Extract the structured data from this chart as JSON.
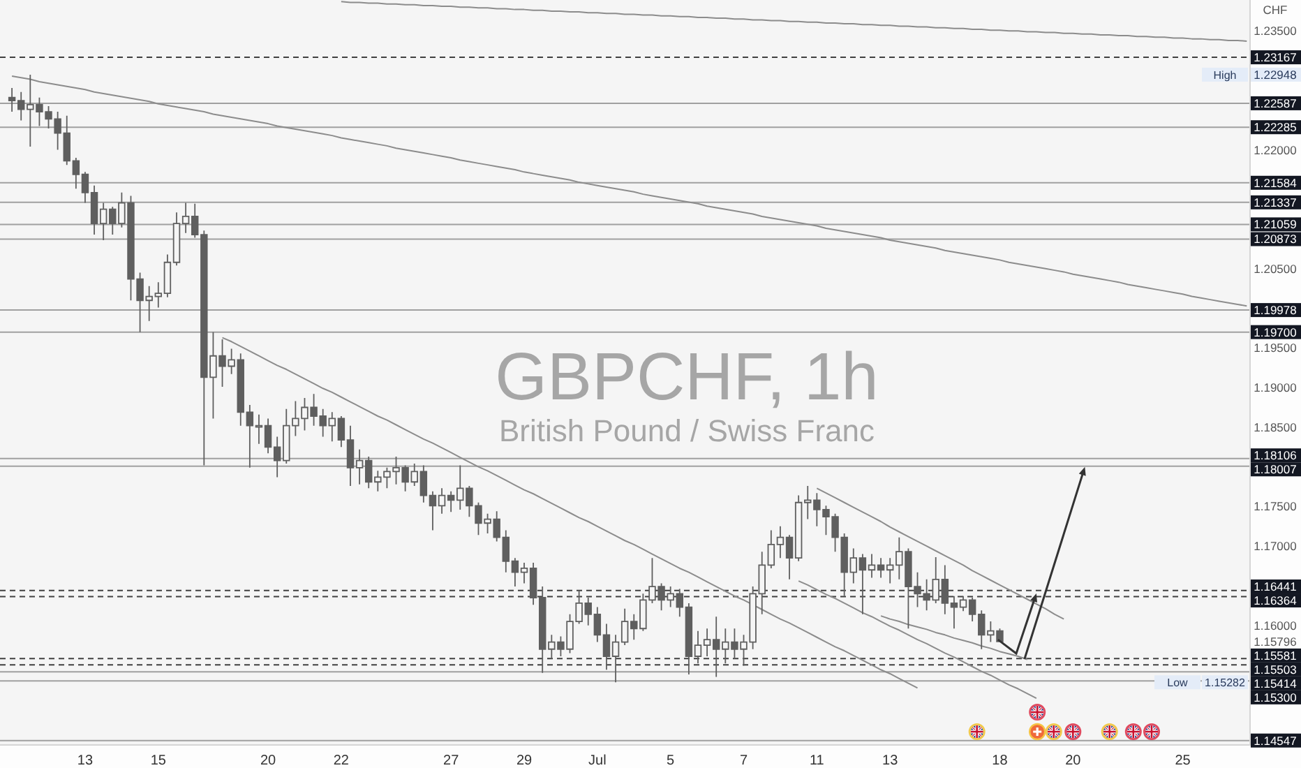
{
  "chart_data": {
    "type": "candlestick",
    "title": "GBPCHF, 1h",
    "subtitle": "British Pound / Swiss Franc",
    "ylabel": "CHF",
    "color": "#5f5f5f",
    "categories": [
      null,
      null,
      null,
      null,
      null,
      null,
      null,
      null,
      "13",
      null,
      null,
      null,
      null,
      null,
      null,
      null,
      "15",
      null,
      null,
      null,
      null,
      null,
      null,
      null,
      null,
      null,
      null,
      null,
      "20",
      null,
      null,
      null,
      null,
      null,
      null,
      null,
      "22",
      null,
      null,
      null,
      null,
      null,
      null,
      null,
      null,
      null,
      null,
      null,
      "27",
      null,
      null,
      null,
      null,
      null,
      null,
      null,
      "29",
      null,
      null,
      null,
      null,
      null,
      null,
      null,
      "Jul",
      null,
      null,
      null,
      null,
      null,
      null,
      null,
      "5",
      null,
      null,
      null,
      null,
      null,
      null,
      null,
      "7",
      null,
      null,
      null,
      null,
      null,
      null,
      null,
      "11",
      null,
      null,
      null,
      null,
      null,
      null,
      null,
      "13",
      null,
      null,
      null,
      null,
      null,
      null,
      null,
      null,
      null,
      null,
      null,
      "18",
      null,
      null,
      null,
      null,
      null,
      null,
      null,
      "20",
      null,
      null,
      null,
      null,
      null,
      null,
      null,
      null,
      null,
      null,
      null,
      "25",
      null,
      null,
      null,
      null,
      null,
      null,
      null
    ],
    "ohlc": [
      [
        1.2266,
        1.2278,
        1.2248,
        1.2262
      ],
      [
        1.2262,
        1.2273,
        1.2237,
        1.2251
      ],
      [
        1.2251,
        1.22948,
        1.2204,
        1.2257
      ],
      [
        1.2257,
        1.2266,
        1.223,
        1.2248
      ],
      [
        1.2248,
        1.2255,
        1.2227,
        1.2239
      ],
      [
        1.2239,
        1.2248,
        1.22,
        1.2221
      ],
      [
        1.2221,
        1.2243,
        1.2181,
        1.2186
      ],
      [
        1.2186,
        1.219,
        1.2151,
        1.2169
      ],
      [
        1.2169,
        1.2172,
        1.2133,
        1.2146
      ],
      [
        1.2146,
        1.2155,
        1.2093,
        1.2107
      ],
      [
        1.2107,
        1.2133,
        1.2086,
        1.2125
      ],
      [
        1.2125,
        1.2128,
        1.2093,
        1.2107
      ],
      [
        1.2107,
        1.2146,
        1.2102,
        1.2133
      ],
      [
        1.2133,
        1.2142,
        1.201,
        1.2037
      ],
      [
        1.2037,
        1.2045,
        1.197,
        1.201
      ],
      [
        1.201,
        1.2028,
        1.1984,
        1.2015
      ],
      [
        1.2015,
        1.2033,
        1.2001,
        1.2019
      ],
      [
        1.2019,
        1.2068,
        1.2014,
        1.2058
      ],
      [
        1.2058,
        1.2121,
        1.2054,
        1.2107
      ],
      [
        1.2107,
        1.2133,
        1.2095,
        1.2116
      ],
      [
        1.2116,
        1.2132,
        1.2089,
        1.2093
      ],
      [
        1.2093,
        1.2098,
        1.1802,
        1.1913
      ],
      [
        1.1913,
        1.197,
        1.1861,
        1.194
      ],
      [
        1.194,
        1.1961,
        1.1901,
        1.1927
      ],
      [
        1.1927,
        1.1949,
        1.1917,
        1.1935
      ],
      [
        1.1935,
        1.1943,
        1.1852,
        1.1869
      ],
      [
        1.1869,
        1.1878,
        1.1799,
        1.1852
      ],
      [
        1.1852,
        1.1866,
        1.1829,
        1.1852
      ],
      [
        1.1852,
        1.1861,
        1.1817,
        1.1825
      ],
      [
        1.1825,
        1.1838,
        1.1787,
        1.1808
      ],
      [
        1.1808,
        1.1873,
        1.1804,
        1.1852
      ],
      [
        1.1852,
        1.1883,
        1.1839,
        1.1861
      ],
      [
        1.1861,
        1.1887,
        1.1846,
        1.1875
      ],
      [
        1.1875,
        1.1892,
        1.1852,
        1.1864
      ],
      [
        1.1864,
        1.1873,
        1.1838,
        1.1852
      ],
      [
        1.1852,
        1.1869,
        1.1832,
        1.1861
      ],
      [
        1.1861,
        1.1864,
        1.1825,
        1.1834
      ],
      [
        1.1834,
        1.1852,
        1.1776,
        1.1799
      ],
      [
        1.1799,
        1.1822,
        1.1778,
        1.1808
      ],
      [
        1.1808,
        1.1813,
        1.1773,
        1.1781
      ],
      [
        1.1781,
        1.1795,
        1.1769,
        1.1787
      ],
      [
        1.1787,
        1.1799,
        1.1773,
        1.1794
      ],
      [
        1.1794,
        1.1813,
        1.1778,
        1.1799
      ],
      [
        1.1799,
        1.1802,
        1.1769,
        1.1781
      ],
      [
        1.1781,
        1.1804,
        1.1776,
        1.1794
      ],
      [
        1.1794,
        1.1802,
        1.1755,
        1.1764
      ],
      [
        1.1764,
        1.1769,
        1.172,
        1.1751
      ],
      [
        1.1751,
        1.1773,
        1.1741,
        1.1764
      ],
      [
        1.1764,
        1.1769,
        1.1743,
        1.1758
      ],
      [
        1.1758,
        1.1802,
        1.1746,
        1.1773
      ],
      [
        1.1773,
        1.1776,
        1.1737,
        1.1751
      ],
      [
        1.1751,
        1.1755,
        1.1714,
        1.1729
      ],
      [
        1.1729,
        1.1741,
        1.1716,
        1.1734
      ],
      [
        1.1734,
        1.1744,
        1.1706,
        1.1711
      ],
      [
        1.1711,
        1.172,
        1.1667,
        1.1681
      ],
      [
        1.1681,
        1.1685,
        1.1649,
        1.1667
      ],
      [
        1.1667,
        1.1679,
        1.1653,
        1.1672
      ],
      [
        1.1672,
        1.1679,
        1.1626,
        1.1635
      ],
      [
        1.1635,
        1.1649,
        1.154,
        1.157
      ],
      [
        1.157,
        1.1588,
        1.1558,
        1.1579
      ],
      [
        1.1579,
        1.1586,
        1.1561,
        1.157
      ],
      [
        1.157,
        1.1614,
        1.1565,
        1.1605
      ],
      [
        1.1605,
        1.1644,
        1.1602,
        1.1628
      ],
      [
        1.1628,
        1.1635,
        1.16,
        1.1614
      ],
      [
        1.1614,
        1.1623,
        1.1579,
        1.1588
      ],
      [
        1.1588,
        1.1602,
        1.1544,
        1.1561
      ],
      [
        1.1561,
        1.1588,
        1.15282,
        1.1579
      ],
      [
        1.1579,
        1.1621,
        1.1575,
        1.1605
      ],
      [
        1.1605,
        1.1614,
        1.1582,
        1.1596
      ],
      [
        1.1596,
        1.164,
        1.1593,
        1.1632
      ],
      [
        1.1632,
        1.1685,
        1.1628,
        1.1649
      ],
      [
        1.1649,
        1.1653,
        1.1619,
        1.1632
      ],
      [
        1.1632,
        1.1649,
        1.1623,
        1.164
      ],
      [
        1.164,
        1.1646,
        1.1611,
        1.1623
      ],
      [
        1.1623,
        1.1628,
        1.1538,
        1.1561
      ],
      [
        1.1561,
        1.1593,
        1.1552,
        1.1575
      ],
      [
        1.1575,
        1.1596,
        1.1561,
        1.1582
      ],
      [
        1.1582,
        1.1611,
        1.1535,
        1.157
      ],
      [
        1.157,
        1.1596,
        1.1552,
        1.1579
      ],
      [
        1.1579,
        1.1596,
        1.1558,
        1.157
      ],
      [
        1.157,
        1.1588,
        1.1549,
        1.1579
      ],
      [
        1.1579,
        1.1649,
        1.157,
        1.164
      ],
      [
        1.164,
        1.1693,
        1.1614,
        1.1676
      ],
      [
        1.1676,
        1.172,
        1.1672,
        1.1702
      ],
      [
        1.1702,
        1.1725,
        1.1685,
        1.1711
      ],
      [
        1.1711,
        1.1714,
        1.1658,
        1.1685
      ],
      [
        1.1685,
        1.1764,
        1.1681,
        1.1755
      ],
      [
        1.1755,
        1.1776,
        1.1734,
        1.1758
      ],
      [
        1.1758,
        1.1767,
        1.1725,
        1.1746
      ],
      [
        1.1746,
        1.1751,
        1.1714,
        1.1737
      ],
      [
        1.1737,
        1.1741,
        1.1693,
        1.1711
      ],
      [
        1.1711,
        1.1716,
        1.1637,
        1.1667
      ],
      [
        1.1667,
        1.1697,
        1.1653,
        1.1685
      ],
      [
        1.1685,
        1.169,
        1.1614,
        1.167
      ],
      [
        1.167,
        1.169,
        1.166,
        1.1676
      ],
      [
        1.1676,
        1.1685,
        1.166,
        1.167
      ],
      [
        1.167,
        1.1685,
        1.1653,
        1.1676
      ],
      [
        1.1676,
        1.1711,
        1.1658,
        1.1693
      ],
      [
        1.1693,
        1.1697,
        1.1596,
        1.1649
      ],
      [
        1.1649,
        1.1667,
        1.1623,
        1.164
      ],
      [
        1.164,
        1.1658,
        1.1619,
        1.1632
      ],
      [
        1.1632,
        1.1686,
        1.1628,
        1.1658
      ],
      [
        1.1658,
        1.1676,
        1.1614,
        1.1628
      ],
      [
        1.1628,
        1.1637,
        1.1596,
        1.1623
      ],
      [
        1.1623,
        1.1637,
        1.1618,
        1.1632
      ],
      [
        1.1632,
        1.1635,
        1.1605,
        1.1614
      ],
      [
        1.1614,
        1.1619,
        1.157,
        1.1588
      ],
      [
        1.1588,
        1.1605,
        1.1579,
        1.1593
      ],
      [
        1.1593,
        1.1596,
        1.1579,
        1.15796
      ],
      null,
      null,
      null,
      null,
      null,
      null,
      null,
      null,
      null,
      null,
      null,
      null,
      null,
      null,
      null,
      null,
      null,
      null,
      null,
      null,
      null,
      null,
      null,
      null,
      null,
      null,
      null
    ],
    "series": [
      {
        "type": "line",
        "color": "#8c8c8c",
        "values": [
          null,
          null,
          null,
          null,
          null,
          null,
          null,
          null,
          null,
          null,
          null,
          null,
          null,
          null,
          null,
          null,
          null,
          null,
          null,
          null,
          null,
          null,
          null,
          null,
          null,
          null,
          null,
          null,
          null,
          null,
          null,
          null,
          null,
          null,
          null,
          null,
          1.2387,
          1.2386,
          1.2386,
          1.2385,
          1.2385,
          1.2384,
          1.2384,
          1.2383,
          1.2383,
          1.2382,
          1.2382,
          1.2381,
          1.2381,
          1.238,
          1.238,
          1.2379,
          1.2379,
          1.2378,
          1.2378,
          1.2377,
          1.2377,
          1.2376,
          1.2376,
          1.2375,
          1.2375,
          1.2374,
          1.2374,
          1.2373,
          1.2373,
          1.2372,
          1.2372,
          1.2371,
          1.2371,
          1.237,
          1.237,
          1.2369,
          1.2369,
          1.2368,
          1.2368,
          1.2367,
          1.2367,
          1.2366,
          1.2366,
          1.2365,
          1.2365,
          1.2364,
          1.2364,
          1.2363,
          1.2363,
          1.2362,
          1.2362,
          1.2361,
          1.2361,
          1.236,
          1.236,
          1.2359,
          1.2359,
          1.2358,
          1.2358,
          1.2357,
          1.2357,
          1.2356,
          1.2356,
          1.2355,
          1.2355,
          1.2354,
          1.2354,
          1.2353,
          1.2353,
          1.2352,
          1.2352,
          1.2351,
          1.2351,
          1.235,
          1.235,
          1.2349,
          1.2349,
          1.2348,
          1.2348,
          1.2347,
          1.2347,
          1.2346,
          1.2346,
          1.2345,
          1.2345,
          1.2344,
          1.2344,
          1.2343,
          1.2343,
          1.2342,
          1.2342,
          1.2341,
          1.2341,
          1.234,
          1.234,
          1.2339,
          1.2339,
          1.2338,
          1.2338,
          1.2337
        ]
      },
      {
        "type": "line",
        "color": "#8c8c8c",
        "values": [
          1.2293,
          1.2291,
          1.2289,
          1.2286,
          1.2284,
          1.2282,
          1.228,
          1.2278,
          1.2276,
          1.2273,
          1.2271,
          1.2269,
          1.2267,
          1.2265,
          1.2263,
          1.2261,
          1.2258,
          1.2256,
          1.2254,
          1.2252,
          1.225,
          1.2248,
          1.2245,
          1.2243,
          1.2241,
          1.2239,
          1.2237,
          1.2235,
          1.2233,
          1.223,
          1.2228,
          1.2226,
          1.2224,
          1.2222,
          1.222,
          1.2218,
          1.2215,
          1.2213,
          1.2211,
          1.2209,
          1.2207,
          1.2205,
          1.2202,
          1.22,
          1.2198,
          1.2196,
          1.2194,
          1.2192,
          1.219,
          1.2187,
          1.2185,
          1.2183,
          1.2181,
          1.2179,
          1.2177,
          1.2175,
          1.2172,
          1.217,
          1.2168,
          1.2166,
          1.2164,
          1.2162,
          1.2159,
          1.2157,
          1.2155,
          1.2153,
          1.2151,
          1.2149,
          1.2147,
          1.2144,
          1.2142,
          1.214,
          1.2138,
          1.2136,
          1.2134,
          1.2132,
          1.2129,
          1.2127,
          1.2125,
          1.2123,
          1.2121,
          1.2119,
          1.2116,
          1.2114,
          1.2112,
          1.211,
          1.2108,
          1.2106,
          1.2104,
          1.2101,
          1.2099,
          1.2097,
          1.2095,
          1.2093,
          1.2091,
          1.2089,
          1.2086,
          1.2084,
          1.2082,
          1.208,
          1.2078,
          1.2076,
          1.2073,
          1.2071,
          1.2069,
          1.2067,
          1.2065,
          1.2063,
          1.2061,
          1.2058,
          1.2056,
          1.2054,
          1.2052,
          1.205,
          1.2048,
          1.2046,
          1.2043,
          1.2041,
          1.2039,
          1.2037,
          1.2035,
          1.2033,
          1.203,
          1.2028,
          1.2026,
          1.2024,
          1.2022,
          1.202,
          1.2018,
          1.2015,
          1.2013,
          1.2011,
          1.2009,
          1.2007,
          1.2005,
          1.2003
        ]
      },
      {
        "type": "line",
        "color": "#8c8c8c",
        "values": [
          null,
          null,
          null,
          null,
          null,
          null,
          null,
          null,
          null,
          null,
          null,
          null,
          null,
          null,
          null,
          null,
          null,
          null,
          null,
          null,
          null,
          null,
          null,
          1.1963,
          1.1958,
          1.1952,
          1.1946,
          1.194,
          1.1934,
          1.1928,
          1.1923,
          1.1917,
          1.1911,
          1.1905,
          1.1899,
          1.1894,
          1.1888,
          1.1882,
          1.1876,
          1.187,
          1.1864,
          1.1859,
          1.1853,
          1.1847,
          1.1841,
          1.1835,
          1.183,
          1.1824,
          1.1818,
          1.1812,
          1.1806,
          1.18,
          1.1795,
          1.1789,
          1.1783,
          1.1777,
          1.1771,
          1.1766,
          1.176,
          1.1754,
          1.1748,
          1.1742,
          1.1736,
          1.1731,
          1.1725,
          1.1719,
          1.1713,
          1.1707,
          1.1702,
          1.1696,
          1.169,
          1.1684,
          1.1678,
          1.1672,
          1.1667,
          1.1661,
          1.1655,
          1.1649,
          1.1643,
          1.1637,
          1.1632,
          1.1626,
          1.162,
          1.1614,
          1.1608,
          1.1603,
          1.1597,
          1.1591,
          1.1585,
          1.1579,
          1.1573,
          1.1568,
          1.1562,
          1.1556,
          1.155,
          1.1544,
          1.1539,
          1.1533,
          1.1527,
          1.1521,
          null,
          null,
          null,
          null,
          null,
          null,
          null,
          null,
          null,
          null,
          null,
          null,
          null,
          null,
          null,
          null,
          null,
          null,
          null,
          null,
          null,
          null,
          null,
          null,
          null,
          null,
          null,
          null,
          null,
          null,
          null,
          null,
          null,
          null,
          null,
          null
        ]
      },
      {
        "type": "line",
        "color": "#8c8c8c",
        "values": [
          null,
          null,
          null,
          null,
          null,
          null,
          null,
          null,
          null,
          null,
          null,
          null,
          null,
          null,
          null,
          null,
          null,
          null,
          null,
          null,
          null,
          null,
          null,
          null,
          null,
          null,
          null,
          null,
          null,
          null,
          null,
          null,
          null,
          null,
          null,
          null,
          null,
          null,
          null,
          null,
          null,
          null,
          null,
          null,
          null,
          null,
          null,
          null,
          null,
          null,
          null,
          null,
          null,
          null,
          null,
          null,
          null,
          null,
          null,
          null,
          null,
          null,
          null,
          null,
          null,
          null,
          null,
          null,
          null,
          null,
          null,
          null,
          null,
          null,
          null,
          null,
          null,
          null,
          null,
          null,
          null,
          null,
          null,
          null,
          null,
          null,
          1.1656,
          1.1651,
          1.1645,
          1.1639,
          1.1634,
          1.1628,
          1.1622,
          1.1616,
          1.1611,
          1.1605,
          1.1599,
          1.1594,
          1.1588,
          1.1582,
          1.1577,
          1.1571,
          1.1565,
          1.156,
          1.1554,
          1.1548,
          1.1542,
          1.1537,
          1.1531,
          1.1525,
          1.152,
          1.1514,
          1.1508,
          null,
          null,
          null,
          null,
          null,
          null,
          null,
          null,
          null,
          null,
          null,
          null,
          null,
          null,
          null,
          null,
          null,
          null,
          null,
          null,
          null,
          null,
          null
        ]
      },
      {
        "type": "line",
        "color": "#8c8c8c",
        "values": [
          null,
          null,
          null,
          null,
          null,
          null,
          null,
          null,
          null,
          null,
          null,
          null,
          null,
          null,
          null,
          null,
          null,
          null,
          null,
          null,
          null,
          null,
          null,
          null,
          null,
          null,
          null,
          null,
          null,
          null,
          null,
          null,
          null,
          null,
          null,
          null,
          null,
          null,
          null,
          null,
          null,
          null,
          null,
          null,
          null,
          null,
          null,
          null,
          null,
          null,
          null,
          null,
          null,
          null,
          null,
          null,
          null,
          null,
          null,
          null,
          null,
          null,
          null,
          null,
          null,
          null,
          null,
          null,
          null,
          null,
          null,
          null,
          null,
          null,
          null,
          null,
          null,
          null,
          null,
          null,
          null,
          null,
          null,
          null,
          null,
          null,
          null,
          null,
          1.1773,
          1.1767,
          1.1761,
          1.1755,
          1.1749,
          1.1743,
          1.1737,
          1.1731,
          1.1724,
          1.1718,
          1.1712,
          1.1706,
          1.17,
          1.1694,
          1.1688,
          1.1682,
          1.1676,
          1.1669,
          1.1663,
          1.1657,
          1.1651,
          1.1645,
          1.1639,
          1.1633,
          1.1627,
          1.1621,
          1.1614,
          1.1608,
          null,
          null,
          null,
          null,
          null,
          null,
          null,
          null,
          null,
          null,
          null,
          null,
          null,
          null,
          null,
          null,
          null,
          null,
          null,
          null
        ]
      },
      {
        "type": "line",
        "color": "#8c8c8c",
        "values": [
          null,
          null,
          null,
          null,
          null,
          null,
          null,
          null,
          null,
          null,
          null,
          null,
          null,
          null,
          null,
          null,
          null,
          null,
          null,
          null,
          null,
          null,
          null,
          null,
          null,
          null,
          null,
          null,
          null,
          null,
          null,
          null,
          null,
          null,
          null,
          null,
          null,
          null,
          null,
          null,
          null,
          null,
          null,
          null,
          null,
          null,
          null,
          null,
          null,
          null,
          null,
          null,
          null,
          null,
          null,
          null,
          null,
          null,
          null,
          null,
          null,
          null,
          null,
          null,
          null,
          null,
          null,
          null,
          null,
          null,
          null,
          null,
          null,
          null,
          null,
          null,
          null,
          null,
          null,
          null,
          null,
          null,
          null,
          null,
          null,
          null,
          null,
          null,
          null,
          null,
          null,
          null,
          null,
          null,
          null,
          1.1612,
          1.1608,
          1.1605,
          1.1601,
          1.1598,
          1.1595,
          1.1591,
          1.1588,
          1.1584,
          1.1581,
          1.1578,
          1.1574,
          1.1571,
          1.1567,
          1.1564,
          1.1561,
          1.1557,
          null,
          null,
          null,
          null,
          null,
          null,
          null,
          null,
          null,
          null,
          null,
          null,
          null,
          null,
          null,
          null,
          null,
          null,
          null,
          null,
          null,
          null,
          null,
          null
        ]
      }
    ],
    "ylim": [
      1.145,
      1.2389
    ],
    "yticks": [
      {
        "value": 1.235,
        "label": "1.23500"
      },
      {
        "value": 1.22948,
        "label": "1.22948"
      },
      {
        "value": 1.22,
        "label": "1.22000"
      },
      {
        "value": 1.205,
        "label": "1.20500"
      },
      {
        "value": 1.195,
        "label": "1.19500"
      },
      {
        "value": 1.19,
        "label": "1.19000"
      },
      {
        "value": 1.185,
        "label": "1.18500"
      },
      {
        "value": 1.175,
        "label": "1.17500"
      },
      {
        "value": 1.17,
        "label": "1.17000"
      },
      {
        "value": 1.16,
        "label": "1.16000"
      },
      {
        "value": 1.15796,
        "label": "1.15796"
      }
    ],
    "ref_lines": [
      {
        "axis": "y",
        "value": 1.23167,
        "label": "1.23167",
        "line_style": "dashed",
        "color": "#404040"
      },
      {
        "axis": "y",
        "value": 1.22587,
        "label": "1.22587",
        "line_style": "solid",
        "color": "#a0a0a0"
      },
      {
        "axis": "y",
        "value": 1.22285,
        "label": "1.22285",
        "line_style": "solid",
        "color": "#a0a0a0"
      },
      {
        "axis": "y",
        "value": 1.21584,
        "label": "1.21584",
        "line_style": "solid",
        "color": "#a0a0a0"
      },
      {
        "axis": "y",
        "value": 1.21337,
        "label": "1.21337",
        "line_style": "solid",
        "color": "#a0a0a0"
      },
      {
        "axis": "y",
        "value": 1.21059,
        "label": "1.21059",
        "line_style": "solid",
        "color": "#a0a0a0"
      },
      {
        "axis": "y",
        "value": 1.20873,
        "label": "1.20873",
        "line_style": "solid",
        "color": "#a0a0a0"
      },
      {
        "axis": "y",
        "value": 1.19978,
        "label": "1.19978",
        "line_style": "solid",
        "color": "#a0a0a0"
      },
      {
        "axis": "y",
        "value": 1.197,
        "label": "1.19700",
        "line_style": "solid",
        "color": "#a0a0a0"
      },
      {
        "axis": "y",
        "value": 1.18106,
        "label": "1.18106",
        "line_style": "solid",
        "color": "#a0a0a0"
      },
      {
        "axis": "y",
        "value": 1.18007,
        "label": "1.18007",
        "line_style": "solid",
        "color": "#a0a0a0"
      },
      {
        "axis": "y",
        "value": 1.16441,
        "label": "1.16441",
        "line_style": "dashed",
        "color": "#404040"
      },
      {
        "axis": "y",
        "value": 1.16364,
        "label": "1.16364",
        "line_style": "dashed",
        "color": "#404040"
      },
      {
        "axis": "y",
        "value": 1.15581,
        "label": "1.15581",
        "line_style": "dashed",
        "color": "#404040"
      },
      {
        "axis": "y",
        "value": 1.15503,
        "label": "1.15503",
        "line_style": "dashed",
        "color": "#404040"
      },
      {
        "axis": "y",
        "value": 1.15414,
        "label": "1.15414",
        "line_style": "solid",
        "color": "#a0a0a0"
      },
      {
        "axis": "y",
        "value": 1.153,
        "label": "1.15300",
        "line_style": "solid",
        "color": "#a0a0a0"
      },
      {
        "axis": "y",
        "value": 1.14547,
        "label": "1.14547",
        "line_style": "solid",
        "color": "#a0a0a0"
      }
    ],
    "annotations": [
      {
        "text": "High",
        "y": 1.22948
      },
      {
        "text": "Low",
        "y": 1.15282
      },
      {
        "text": "1.15282",
        "y": 1.15282
      }
    ]
  }
}
